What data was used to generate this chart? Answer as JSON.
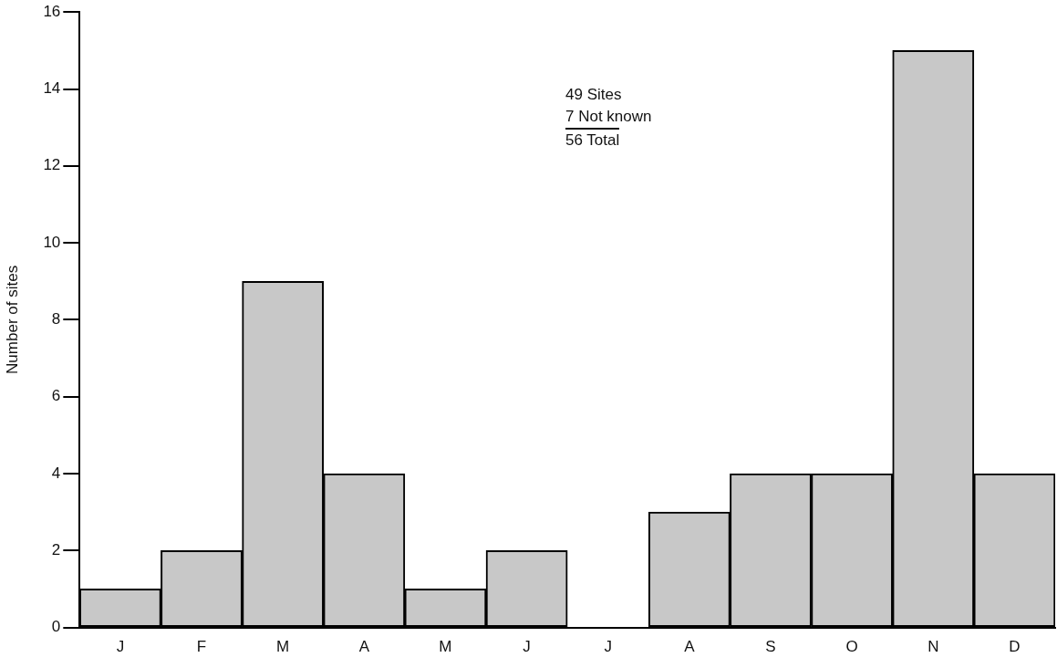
{
  "chart_data": {
    "type": "bar",
    "ylabel": "Number of sites",
    "categories": [
      "J",
      "F",
      "M",
      "A",
      "M",
      "J",
      "J",
      "A",
      "S",
      "O",
      "N",
      "D"
    ],
    "values": [
      1,
      2,
      9,
      4,
      1,
      2,
      0,
      3,
      4,
      4,
      15,
      4
    ],
    "color": "#c8c8c8",
    "ylim": [
      0,
      16
    ],
    "yticks": [
      0,
      2,
      4,
      6,
      8,
      10,
      12,
      14,
      16
    ],
    "grid": false,
    "legend": false,
    "annotations": [
      "49 Sites",
      "7 Not known",
      "56 Total"
    ]
  }
}
